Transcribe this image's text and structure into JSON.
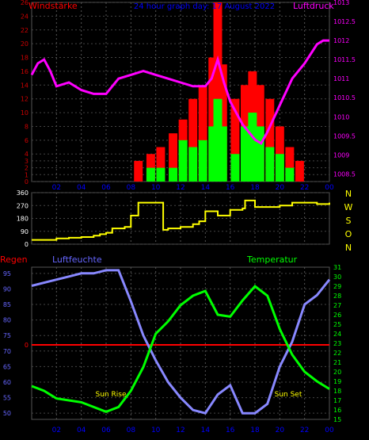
{
  "header": {
    "left_label": "Windstärke",
    "center_label": "24 hour graph day: 17 August 2022",
    "right_label": "Luftdruck"
  },
  "wind_dir_letters": [
    "N",
    "W",
    "S",
    "O",
    "N"
  ],
  "bottom_header": {
    "rain_label": "Regen",
    "humidity_label": "Luftfeuchte",
    "temp_label": "Temperatur"
  },
  "annotations": {
    "sunrise": "Sun Rise",
    "sunset": "Sun Set"
  },
  "colors": {
    "wind_speed": "#ff0000",
    "wind_gust": "#00ff00",
    "pressure": "#ff00ff",
    "direction": "#ffff00",
    "humidity": "#8888ff",
    "temperature": "#00ff00",
    "rain": "#ff0000",
    "left_axis": "#cc0000",
    "right_axis": "#ff00ff",
    "dir_axis": "#ffffff",
    "hum_axis": "#6666ff",
    "temp_axis": "#00ff00",
    "time_axis": "#0000ff",
    "title": "#0000ff"
  },
  "chart_data": [
    {
      "type": "bar",
      "x_ticks": [
        "02",
        "04",
        "06",
        "08",
        "10",
        "12",
        "14",
        "16",
        "18",
        "20",
        "22",
        "00"
      ],
      "xlim_hours": [
        0,
        24
      ],
      "left_axis_ticks": [
        "0",
        "1",
        "2",
        "3",
        "4",
        "6",
        "8",
        "10",
        "12",
        "14",
        "16",
        "18",
        "20",
        "22",
        "24",
        "26"
      ],
      "right_axis_ticks": [
        "1008.5",
        "1009",
        "1009.5",
        "1010",
        "1010.5",
        "1011",
        "1011.5",
        "1012",
        "1012.5",
        "1013"
      ],
      "series": [
        {
          "name": "wind_speed",
          "hours": [
            8.6,
            9.6,
            10.4,
            11.4,
            12.2,
            13.0,
            13.8,
            14.6,
            15.0,
            15.4,
            16.4,
            17.2,
            17.8,
            18.4,
            19.2,
            20.0,
            20.8,
            21.6
          ],
          "values": [
            3,
            4,
            5,
            7,
            9,
            12,
            14,
            18,
            26,
            17,
            12,
            14,
            16,
            14,
            12,
            8,
            5,
            3
          ]
        },
        {
          "name": "wind_gust",
          "hours": [
            9.6,
            10.4,
            11.4,
            12.2,
            13.0,
            13.8,
            14.6,
            15.0,
            15.4,
            16.4,
            17.2,
            17.8,
            18.4,
            19.2,
            20.0,
            20.8
          ],
          "values": [
            2,
            2,
            2,
            6,
            5,
            6,
            8,
            12,
            8,
            4,
            8,
            10,
            8,
            5,
            4,
            2
          ]
        },
        {
          "name": "pressure",
          "hours": [
            0,
            0.5,
            1,
            1.5,
            2,
            3,
            4,
            5,
            6,
            6.5,
            7,
            8,
            9,
            10,
            11,
            12,
            13,
            14,
            14.5,
            15,
            15.5,
            16,
            17,
            18,
            18.5,
            19,
            20,
            21,
            22,
            23,
            23.5,
            24
          ],
          "values": [
            1011.1,
            1011.4,
            1011.5,
            1011.2,
            1010.8,
            1010.9,
            1010.7,
            1010.6,
            1010.6,
            1010.8,
            1011.0,
            1011.1,
            1011.2,
            1011.1,
            1011.0,
            1010.9,
            1010.8,
            1010.8,
            1011.0,
            1011.5,
            1010.9,
            1010.4,
            1009.8,
            1009.4,
            1009.3,
            1009.6,
            1010.3,
            1011.0,
            1011.4,
            1011.9,
            1012.0,
            1012.0
          ]
        }
      ],
      "left_ylim": [
        0,
        26
      ],
      "right_ylim": [
        1008.3,
        1013
      ]
    },
    {
      "type": "line",
      "x_ticks": [
        "02",
        "04",
        "06",
        "08",
        "10",
        "12",
        "14",
        "16",
        "18",
        "20",
        "22",
        "00"
      ],
      "xlim_hours": [
        0,
        24
      ],
      "y_ticks": [
        "360",
        "270",
        "180",
        "90",
        "0"
      ],
      "ylim": [
        0,
        360
      ],
      "series": [
        {
          "name": "wind_direction",
          "hours": [
            0,
            2,
            3,
            4,
            5,
            5.5,
            6,
            6.5,
            7,
            7.5,
            8,
            8.6,
            9,
            10,
            10.6,
            11,
            12,
            13,
            13.5,
            14,
            14.5,
            15,
            15.5,
            16,
            17,
            17.2,
            18,
            20,
            21,
            22,
            23,
            24
          ],
          "values": [
            30,
            40,
            45,
            50,
            60,
            70,
            80,
            110,
            110,
            120,
            200,
            290,
            290,
            290,
            100,
            110,
            120,
            140,
            160,
            230,
            230,
            200,
            200,
            240,
            250,
            305,
            260,
            270,
            290,
            290,
            280,
            290
          ]
        }
      ]
    },
    {
      "type": "line",
      "x_ticks": [
        "02",
        "04",
        "06",
        "08",
        "10",
        "12",
        "14",
        "16",
        "18",
        "20",
        "22",
        "00"
      ],
      "xlim_hours": [
        0,
        24
      ],
      "humidity_ticks": [
        "95",
        "90",
        "85",
        "80",
        "75",
        "70",
        "65",
        "60",
        "55",
        "50"
      ],
      "humidity_ylim": [
        48,
        97
      ],
      "temperature_ticks": [
        "31",
        "30",
        "29",
        "28",
        "27",
        "26",
        "25",
        "24",
        "23",
        "22",
        "21",
        "20",
        "19",
        "18",
        "17",
        "16",
        "15"
      ],
      "temperature_ylim": [
        15,
        31
      ],
      "rain_ticks": [
        "0"
      ],
      "series": [
        {
          "name": "humidity",
          "hours": [
            0,
            1,
            2,
            3,
            4,
            5,
            6,
            7,
            8,
            9,
            10,
            11,
            12,
            13,
            14,
            15,
            16,
            17,
            18,
            19,
            20,
            21,
            22,
            23,
            24
          ],
          "values": [
            91,
            92,
            93,
            94,
            95,
            95,
            96,
            96,
            86,
            75,
            67,
            60,
            55,
            51,
            50,
            56,
            59,
            50,
            50,
            53,
            65,
            73,
            85,
            88,
            93
          ]
        },
        {
          "name": "temperature",
          "hours": [
            0,
            1,
            2,
            3,
            4,
            5,
            6,
            7,
            8,
            9,
            10,
            11,
            12,
            13,
            14,
            15,
            16,
            17,
            18,
            19,
            20,
            21,
            22,
            23,
            24
          ],
          "values": [
            18.5,
            18.0,
            17.2,
            17.0,
            16.8,
            16.3,
            15.8,
            16.3,
            18.0,
            20.5,
            24.0,
            25.3,
            27.0,
            28.0,
            28.5,
            26.0,
            25.8,
            27.5,
            29.0,
            28.0,
            24.5,
            21.8,
            20.0,
            19.0,
            18.2
          ]
        },
        {
          "name": "rain",
          "hours": [
            0,
            24
          ],
          "values": [
            0,
            0
          ]
        }
      ]
    }
  ]
}
